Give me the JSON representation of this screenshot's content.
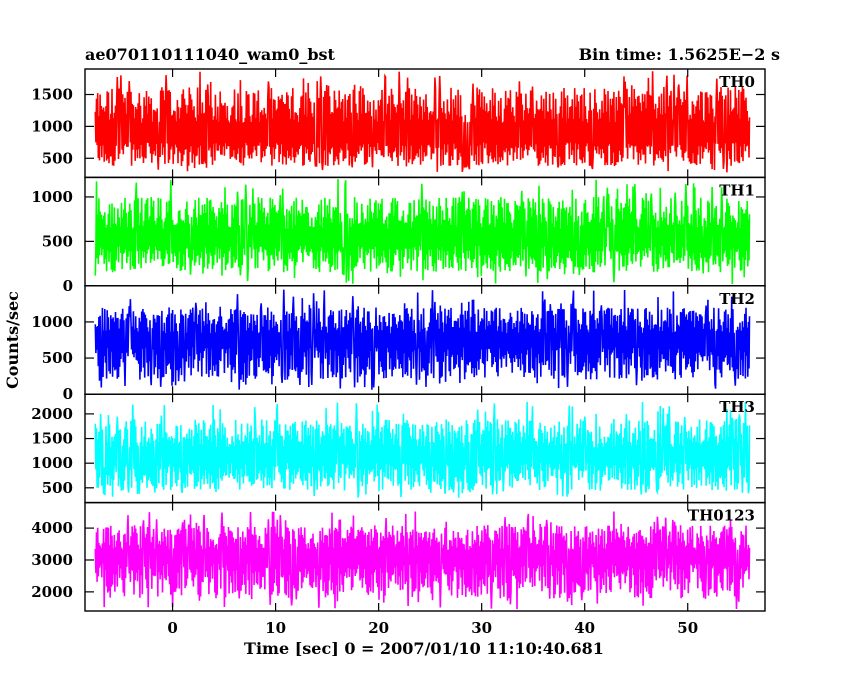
{
  "header": {
    "left_title": "ae070110111040_wam0_bst",
    "right_title": "Bin time: 1.5625E−2 s"
  },
  "axes": {
    "ylabel": "Counts/sec",
    "xlabel": "Time [sec] 0 = 2007/01/10 11:10:40.681"
  },
  "chart_data": {
    "type": "line",
    "title": "ae070110111040_wam0_bst",
    "subtitle": "Bin time: 1.5625E−2 s",
    "xlabel": "Time [sec] 0 = 2007/01/10 11:10:40.681",
    "ylabel": "Counts/sec",
    "xlim": [
      -8.5,
      57.5
    ],
    "data_xrange": [
      -7.5,
      56.0
    ],
    "x_ticks": [
      0,
      10,
      20,
      30,
      40,
      50
    ],
    "x_tick_labels": [
      "0",
      "10",
      "20",
      "30",
      "40",
      "50"
    ],
    "grid": false,
    "legend": "none",
    "series": [
      {
        "name": "TH0",
        "color": "#ff0000",
        "ylim": [
          200,
          1900
        ],
        "y_ticks": [
          500,
          1000,
          1500
        ],
        "y_tick_labels": [
          "500",
          "1000",
          "1500"
        ],
        "baseline_min": 280,
        "typical_range": [
          380,
          1620
        ],
        "mean": 750,
        "peak_max": 1900
      },
      {
        "name": "TH1",
        "color": "#00ff00",
        "ylim": [
          0,
          1220
        ],
        "y_ticks": [
          0,
          500,
          1000
        ],
        "y_tick_labels": [
          "0",
          "500",
          "1000"
        ],
        "baseline_min": 20,
        "typical_range": [
          150,
          1000
        ],
        "mean": 450,
        "peak_max": 1220
      },
      {
        "name": "TH2",
        "color": "#0000ff",
        "ylim": [
          0,
          1500
        ],
        "y_ticks": [
          0,
          500,
          1000
        ],
        "y_tick_labels": [
          "0",
          "500",
          "1000"
        ],
        "baseline_min": 60,
        "typical_range": [
          200,
          1200
        ],
        "mean": 650,
        "peak_max": 1450
      },
      {
        "name": "TH3",
        "color": "#00ffff",
        "ylim": [
          200,
          2400
        ],
        "y_ticks": [
          500,
          1000,
          1500,
          2000
        ],
        "y_tick_labels": [
          "500",
          "1000",
          "1500",
          "2000"
        ],
        "baseline_min": 300,
        "typical_range": [
          450,
          1900
        ],
        "mean": 1000,
        "peak_max": 2250
      },
      {
        "name": "TH0123",
        "color": "#ff00ff",
        "ylim": [
          1400,
          4800
        ],
        "y_ticks": [
          2000,
          3000,
          4000
        ],
        "y_tick_labels": [
          "2000",
          "3000",
          "4000"
        ],
        "baseline_min": 1450,
        "typical_range": [
          1800,
          4100
        ],
        "mean": 2900,
        "peak_max": 4550
      }
    ]
  }
}
